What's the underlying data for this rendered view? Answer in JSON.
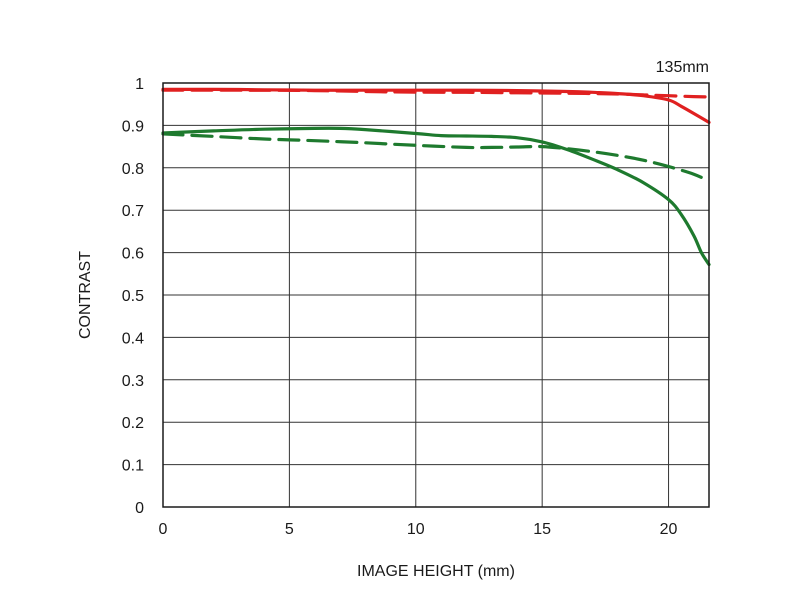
{
  "chart_data": {
    "type": "line",
    "title": "135mm",
    "xlabel": "IMAGE HEIGHT (mm)",
    "ylabel": "CONTRAST",
    "xlim": [
      0,
      21.6
    ],
    "ylim": [
      0,
      1
    ],
    "xticks": [
      0,
      5,
      10,
      15,
      20
    ],
    "yticks": [
      0,
      0.1,
      0.2,
      0.3,
      0.4,
      0.5,
      0.6,
      0.7,
      0.8,
      0.9,
      1
    ],
    "ytick_labels": [
      "0",
      "0.1",
      "0.2",
      "0.3",
      "0.4",
      "0.5",
      "0.6",
      "0.7",
      "0.8",
      "0.9",
      "1"
    ],
    "xtick_labels": [
      "0",
      "5",
      "10",
      "15",
      "20"
    ],
    "grid": true,
    "colors": {
      "red": "#e02020",
      "green": "#1e7a2e"
    },
    "series": [
      {
        "color": "red",
        "dash": false,
        "x": [
          0,
          2,
          4,
          6,
          8,
          10,
          12,
          14,
          16,
          17,
          18,
          19,
          20,
          20.5,
          21,
          21.6
        ],
        "y": [
          0.985,
          0.985,
          0.984,
          0.983,
          0.983,
          0.983,
          0.983,
          0.982,
          0.98,
          0.978,
          0.975,
          0.97,
          0.96,
          0.945,
          0.928,
          0.907
        ]
      },
      {
        "color": "red",
        "dash": true,
        "x": [
          0,
          3,
          6,
          9,
          12,
          14,
          16,
          18,
          19,
          20,
          21,
          21.6
        ],
        "y": [
          0.983,
          0.983,
          0.982,
          0.979,
          0.978,
          0.977,
          0.976,
          0.974,
          0.972,
          0.97,
          0.968,
          0.967
        ]
      },
      {
        "color": "green",
        "dash": false,
        "x": [
          0,
          2,
          4,
          6,
          7,
          8,
          10,
          11,
          12,
          13,
          14,
          15,
          16,
          17,
          18,
          19,
          20,
          20.5,
          21,
          21.3,
          21.6
        ],
        "y": [
          0.882,
          0.887,
          0.891,
          0.893,
          0.893,
          0.89,
          0.881,
          0.876,
          0.875,
          0.874,
          0.871,
          0.861,
          0.843,
          0.82,
          0.795,
          0.765,
          0.725,
          0.69,
          0.64,
          0.6,
          0.572
        ]
      },
      {
        "color": "green",
        "dash": true,
        "x": [
          0,
          2,
          4,
          6,
          8,
          10,
          12,
          13,
          14,
          15,
          16,
          17,
          18,
          19,
          20,
          21,
          21.6
        ],
        "y": [
          0.88,
          0.874,
          0.868,
          0.864,
          0.859,
          0.853,
          0.848,
          0.848,
          0.849,
          0.85,
          0.845,
          0.838,
          0.829,
          0.818,
          0.803,
          0.785,
          0.768
        ]
      }
    ]
  }
}
